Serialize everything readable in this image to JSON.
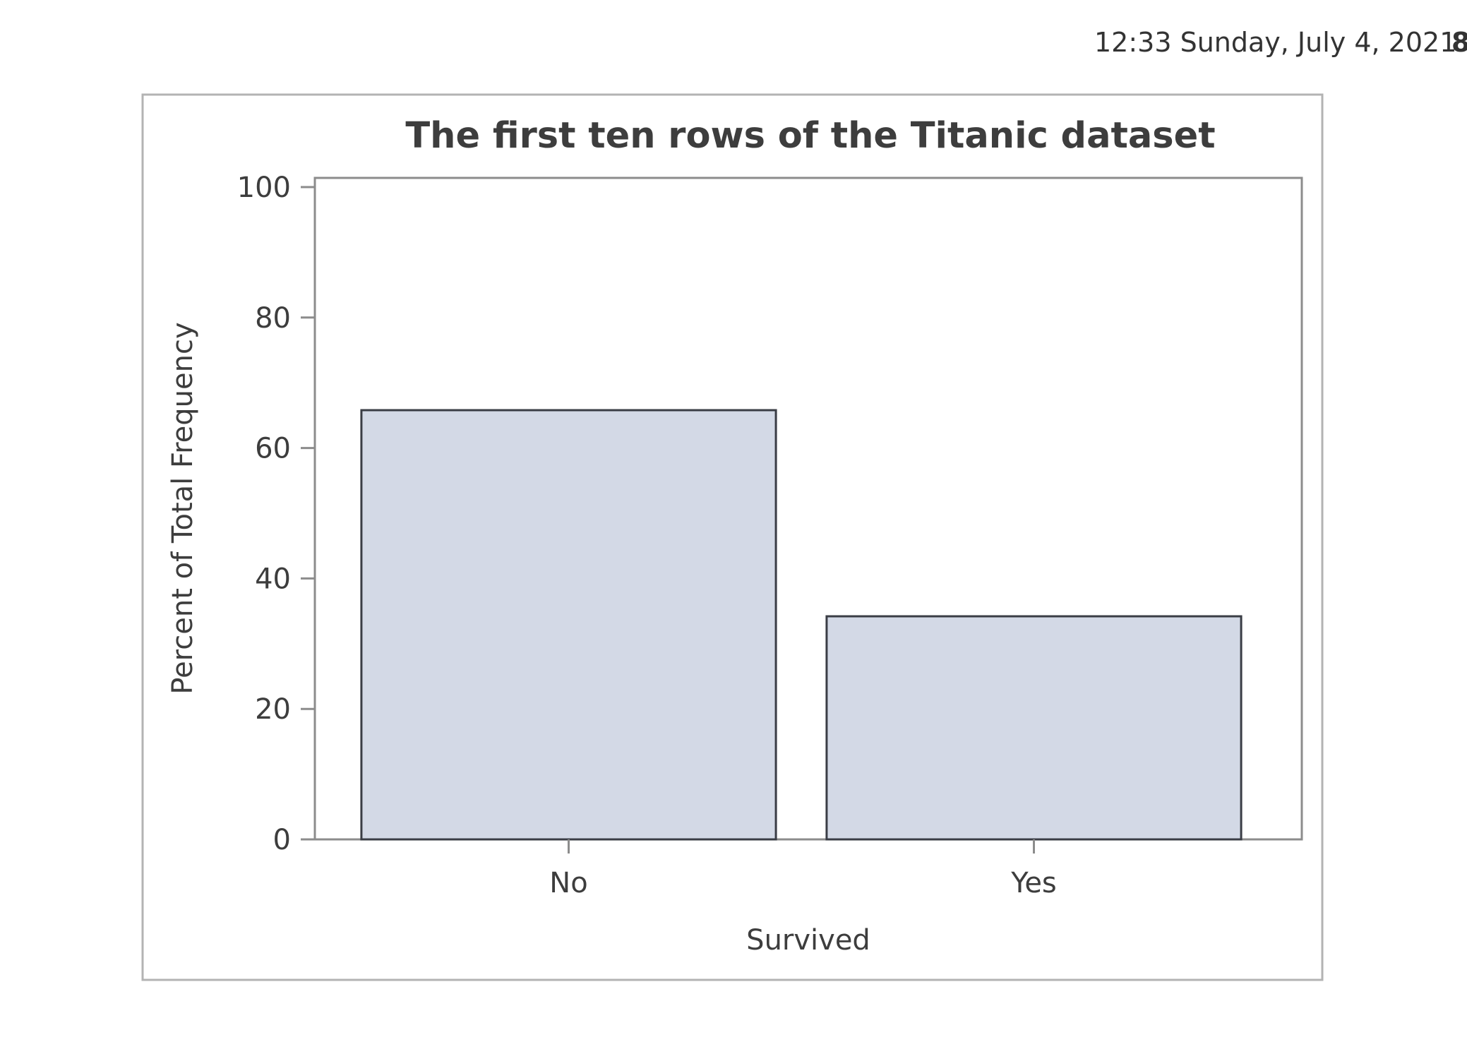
{
  "header": {
    "datetime": "12:33 Sunday, July 4, 2021",
    "page_number": "8"
  },
  "chart_data": {
    "type": "bar",
    "title": "The first ten rows of the Titanic dataset",
    "xlabel": "Survived",
    "ylabel": "Percent of Total Frequency",
    "categories": [
      "No",
      "Yes"
    ],
    "values": [
      65.8,
      34.2
    ],
    "ylim": [
      0,
      100
    ],
    "yticks": [
      0,
      20,
      40,
      60,
      80,
      100
    ],
    "grid": false,
    "colors": {
      "bar_fill": "#d3d9e6",
      "bar_stroke": "#3a3d45",
      "axis": "#8c8c8c",
      "frame": "#b3b3b3",
      "text": "#3d3d3d"
    }
  }
}
